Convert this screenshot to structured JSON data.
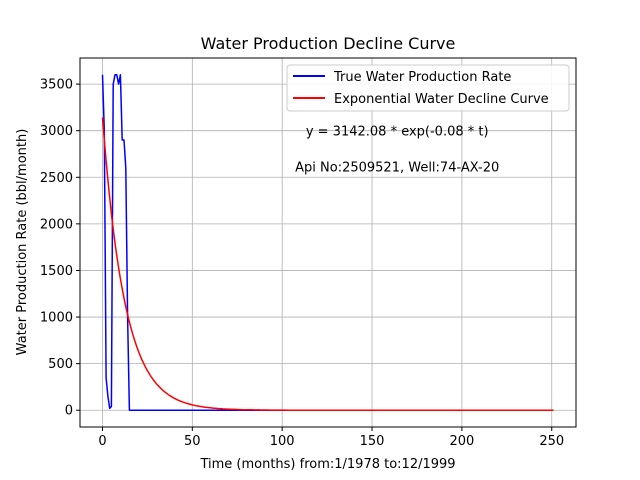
{
  "chart_data": {
    "type": "line",
    "title": "Water Production Decline Curve",
    "xlabel": "Time (months) from:1/1978 to:12/1999",
    "ylabel": "Water Production Rate (bbl/month)",
    "xlim": [
      -12.5,
      263.5
    ],
    "ylim": [
      -180,
      3780
    ],
    "xticks": [
      0,
      50,
      100,
      150,
      200,
      250
    ],
    "yticks": [
      0,
      500,
      1000,
      1500,
      2000,
      2500,
      3000,
      3500
    ],
    "grid": true,
    "legend_position": "top-right",
    "annotations": [
      {
        "text": "y = 3142.08 * exp(-0.08 * t)",
        "x": 164,
        "y": 2950
      },
      {
        "text": "Api No:2509521, Well:74-AX-20",
        "x": 164,
        "y": 2560
      }
    ],
    "series": [
      {
        "name": "True Water Production Rate",
        "color": "#0000ff",
        "x": [
          0,
          1,
          2,
          3,
          4,
          5,
          6,
          7,
          8,
          9,
          10,
          11,
          12,
          13,
          14,
          15,
          20,
          30,
          50,
          100,
          150,
          200,
          251
        ],
        "y": [
          3600,
          3000,
          350,
          150,
          20,
          40,
          3500,
          3600,
          3600,
          3500,
          3600,
          2900,
          2900,
          2600,
          1000,
          0,
          0,
          0,
          0,
          0,
          0,
          0,
          0
        ]
      },
      {
        "name": "Exponential Water Decline Curve",
        "color": "#ff0000",
        "fn": {
          "a": 3142.08,
          "b": 0.08,
          "x_start": 0,
          "x_end": 251
        }
      }
    ]
  }
}
